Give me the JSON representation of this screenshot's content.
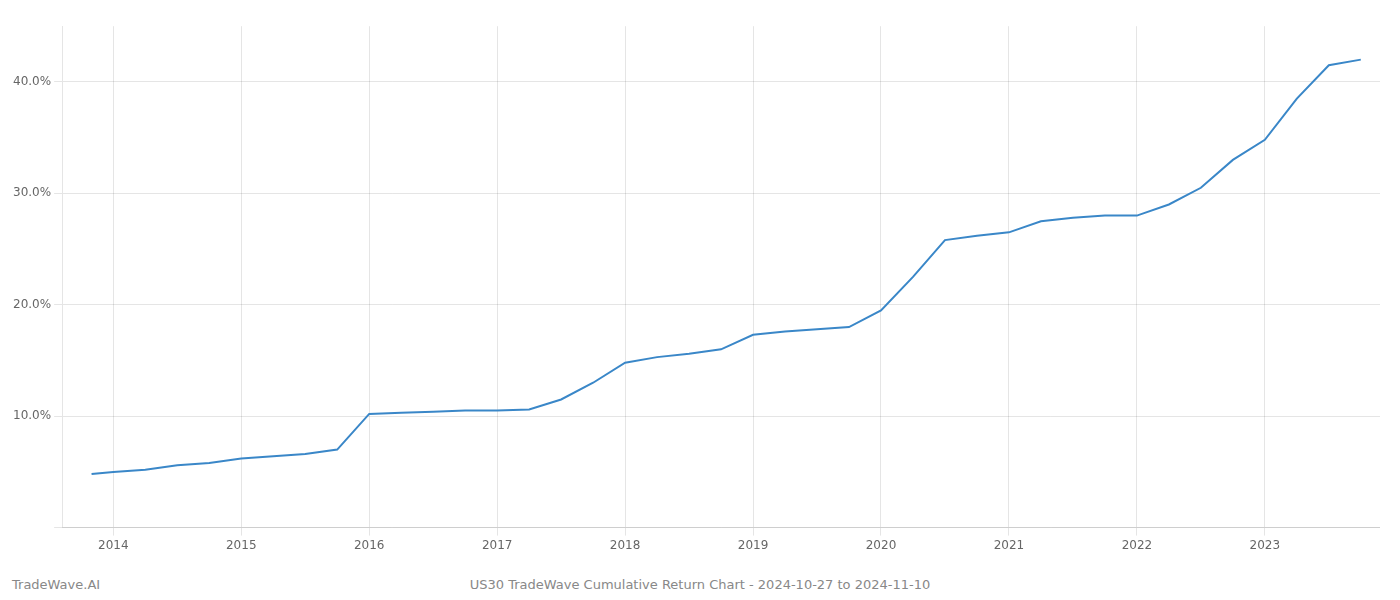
{
  "chart_data": {
    "type": "line",
    "annotations": [
      "TradeWave.AI",
      "US30 TradeWave Cumulative Return Chart - 2024-10-27 to 2024-11-10"
    ],
    "color": "#3a87c8",
    "x": [
      2013.83,
      2014.0,
      2014.25,
      2014.5,
      2014.75,
      2015.0,
      2015.25,
      2015.5,
      2015.75,
      2016.0,
      2016.25,
      2016.5,
      2016.75,
      2017.0,
      2017.25,
      2017.5,
      2017.75,
      2018.0,
      2018.25,
      2018.5,
      2018.75,
      2019.0,
      2019.25,
      2019.5,
      2019.75,
      2020.0,
      2020.25,
      2020.5,
      2020.75,
      2021.0,
      2021.25,
      2021.5,
      2021.75,
      2022.0,
      2022.25,
      2022.5,
      2022.75,
      2023.0,
      2023.25,
      2023.5,
      2023.75
    ],
    "values": [
      4.8,
      5.0,
      5.2,
      5.6,
      5.8,
      6.2,
      6.4,
      6.6,
      7.0,
      10.2,
      10.3,
      10.4,
      10.5,
      10.5,
      10.6,
      11.5,
      13.0,
      14.8,
      15.3,
      15.6,
      16.0,
      17.3,
      17.6,
      17.8,
      18.0,
      19.5,
      22.5,
      25.8,
      26.2,
      26.5,
      27.5,
      27.8,
      28.0,
      28.0,
      29.0,
      30.5,
      33.0,
      34.8,
      38.5,
      41.5,
      42.0
    ],
    "xlim": [
      2013.6,
      2023.9
    ],
    "xticks": [
      2014,
      2015,
      2016,
      2017,
      2018,
      2019,
      2020,
      2021,
      2022,
      2023
    ],
    "ylim": [
      0,
      45
    ],
    "yticks": [
      {
        "value": 0,
        "label": null
      },
      {
        "value": 10.0,
        "label": "10.0%"
      },
      {
        "value": 20.0,
        "label": "20.0%"
      },
      {
        "value": 30.0,
        "label": "30.0%"
      },
      {
        "value": 40.0,
        "label": "40.0%"
      }
    ],
    "grid": true
  }
}
